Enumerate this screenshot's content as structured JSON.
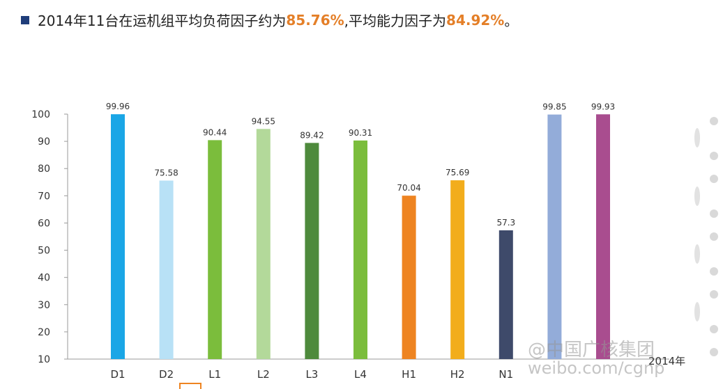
{
  "headline": {
    "prefix": "2014年11台在运机组平均负荷因子约为",
    "load_factor": "85.76%",
    "middle": ",平均能力因子为",
    "capability_factor": "84.92%",
    "suffix": "。"
  },
  "chart_data": {
    "type": "bar",
    "categories": [
      "D1",
      "D2",
      "L1",
      "L2",
      "L3",
      "L4",
      "H1",
      "H2",
      "N1",
      "",
      ""
    ],
    "values": [
      99.96,
      75.58,
      90.44,
      94.55,
      89.42,
      90.31,
      70.04,
      75.69,
      57.3,
      99.85,
      99.93
    ],
    "colors": [
      "#1aa6e6",
      "#b8e1f6",
      "#7bbd3c",
      "#b3d99a",
      "#4e8a3c",
      "#7bbd3c",
      "#ee8421",
      "#f2ad1c",
      "#3e4a6a",
      "#93acd9",
      "#a94d8f"
    ],
    "y_ticks": [
      "10",
      "20",
      "30",
      "40",
      "50",
      "60",
      "70",
      "80",
      "90",
      "100"
    ],
    "ylim": [
      10,
      103
    ],
    "grid": false,
    "legend": "none",
    "title": "",
    "xlabel": "",
    "ylabel": ""
  },
  "watermark": {
    "line1": "@中国广核集团",
    "line2": "weibo.com/cgnp"
  },
  "year_fragment": "2014年"
}
